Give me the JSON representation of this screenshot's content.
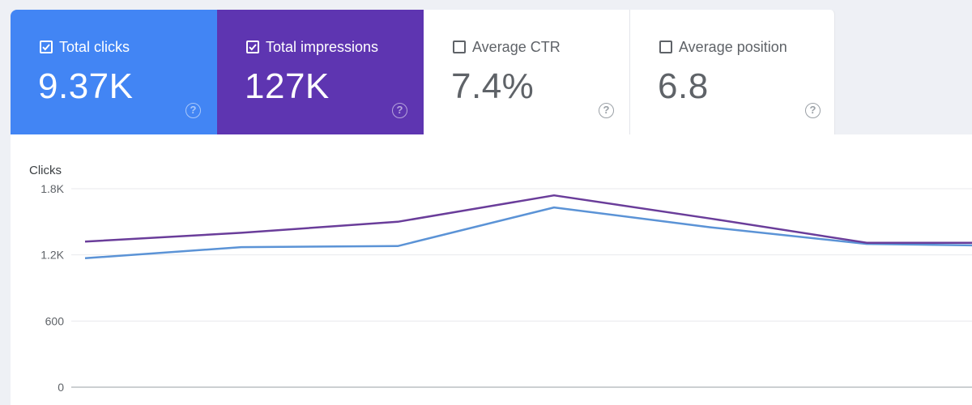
{
  "metrics": {
    "clicks": {
      "label": "Total clicks",
      "value": "9.37K",
      "checked": true,
      "color": "#4285f4"
    },
    "impressions": {
      "label": "Total impressions",
      "value": "127K",
      "checked": true,
      "color": "#5e35b1"
    },
    "ctr": {
      "label": "Average CTR",
      "value": "7.4%",
      "checked": false
    },
    "position": {
      "label": "Average position",
      "value": "6.8",
      "checked": false
    }
  },
  "colors": {
    "clicks_line": "#5b93d6",
    "impressions_line": "#6a3d9a",
    "grid": "#e8eaed",
    "card_inactive_text": "#5f6368"
  },
  "chart_data": {
    "type": "line",
    "ylabel": "Clicks",
    "ylim": [
      0,
      1800
    ],
    "yticks": [
      0,
      600,
      1200,
      1800
    ],
    "ytick_labels": [
      "0",
      "600",
      "1.2K",
      "1.8K"
    ],
    "grid": true,
    "x": [
      1,
      2,
      3,
      4,
      5,
      6,
      7
    ],
    "series": [
      {
        "values": [
          1170,
          1270,
          1280,
          1630,
          1450,
          1300,
          1280
        ],
        "color": "#5b93d6"
      },
      {
        "values": [
          1320,
          1400,
          1500,
          1740,
          1530,
          1310,
          1310
        ],
        "color": "#6a3d9a"
      }
    ]
  }
}
